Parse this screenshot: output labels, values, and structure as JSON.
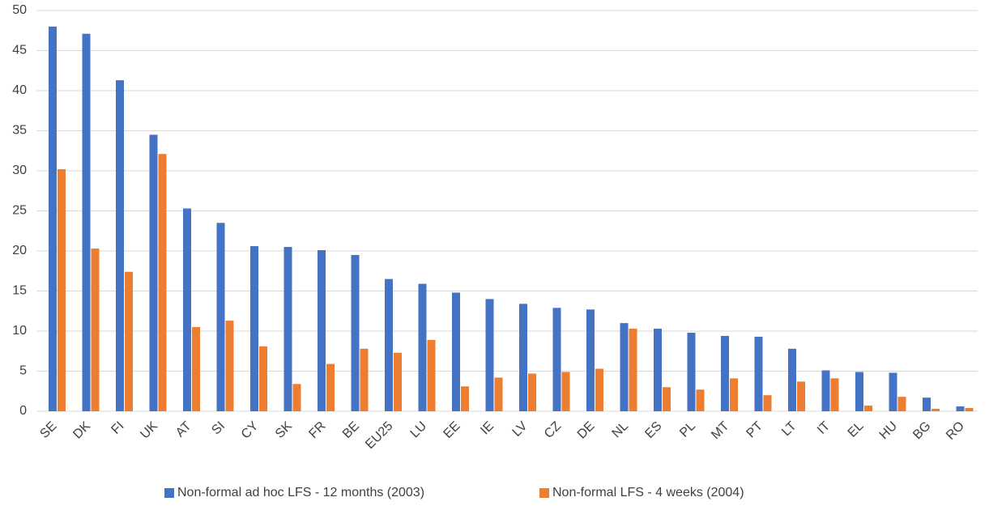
{
  "chart_data": {
    "type": "bar",
    "categories": [
      "SE",
      "DK",
      "FI",
      "UK",
      "AT",
      "SI",
      "CY",
      "SK",
      "FR",
      "BE",
      "EU25",
      "LU",
      "EE",
      "IE",
      "LV",
      "CZ",
      "DE",
      "NL",
      "ES",
      "PL",
      "MT",
      "PT",
      "LT",
      "IT",
      "EL",
      "HU",
      "BG",
      "RO"
    ],
    "series": [
      {
        "name": "Non-formal ad hoc LFS - 12 months (2003)",
        "color": "#4472c4",
        "values": [
          48,
          47.1,
          41.3,
          34.5,
          25.3,
          23.5,
          20.6,
          20.5,
          20.1,
          19.5,
          16.5,
          15.9,
          14.8,
          14.0,
          13.4,
          12.9,
          12.7,
          11.0,
          10.3,
          9.8,
          9.4,
          9.3,
          7.8,
          5.1,
          4.9,
          4.8,
          1.7,
          0.6
        ]
      },
      {
        "name": "Non-formal LFS - 4 weeks (2004)",
        "color": "#ed7d31",
        "values": [
          30.2,
          20.3,
          17.4,
          32.1,
          10.5,
          11.3,
          8.1,
          3.4,
          5.9,
          7.8,
          7.3,
          8.9,
          3.1,
          4.2,
          4.7,
          4.9,
          5.3,
          10.3,
          3.0,
          2.7,
          4.1,
          2.0,
          3.7,
          4.1,
          0.7,
          1.8,
          0.3,
          0.4
        ]
      }
    ],
    "ylim": [
      0,
      50
    ],
    "yticks": [
      0,
      5,
      10,
      15,
      20,
      25,
      30,
      35,
      40,
      45,
      50
    ],
    "grid": true,
    "legend": "bottom"
  }
}
